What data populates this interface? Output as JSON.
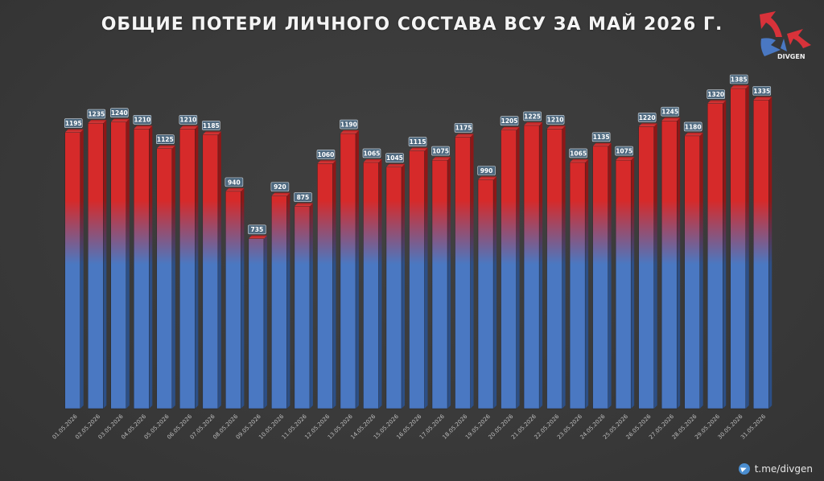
{
  "title": "ОБЩИЕ ПОТЕРИ ЛИЧНОГО СОСТАВА ВСУ ЗА МАЙ 2026 Г.",
  "logo_text": "DIVGEN",
  "footer_link": "t.me/divgen",
  "colors": {
    "bar_top": "#d62a2a",
    "bar_bottom": "#4a78c2",
    "label_bg": "#4f6a80",
    "background": "#3a3a3a"
  },
  "chart_data": {
    "type": "bar",
    "categories": [
      "01.05.2026",
      "02.05.2026",
      "03.05.2026",
      "04.05.2026",
      "05.05.2026",
      "06.05.2026",
      "07.05.2026",
      "08.05.2026",
      "09.05.2026",
      "10.05.2026",
      "11.05.2026",
      "12.05.2026",
      "13.05.2026",
      "14.05.2026",
      "15.05.2026",
      "16.05.2026",
      "17.05.2026",
      "18.05.2026",
      "19.05.2026",
      "20.05.2026",
      "21.05.2026",
      "22.05.2026",
      "23.05.2026",
      "24.05.2026",
      "25.05.2026",
      "26.05.2026",
      "27.05.2026",
      "28.05.2026",
      "29.05.2026",
      "30.05.2026",
      "31.05.2026"
    ],
    "values": [
      1195,
      1235,
      1240,
      1210,
      1125,
      1210,
      1185,
      940,
      735,
      920,
      875,
      1060,
      1190,
      1065,
      1045,
      1115,
      1075,
      1175,
      990,
      1205,
      1225,
      1210,
      1065,
      1135,
      1075,
      1220,
      1245,
      1180,
      1320,
      1385,
      1335
    ],
    "ylim": [
      0,
      1385
    ],
    "grid": false,
    "legend": "none"
  }
}
